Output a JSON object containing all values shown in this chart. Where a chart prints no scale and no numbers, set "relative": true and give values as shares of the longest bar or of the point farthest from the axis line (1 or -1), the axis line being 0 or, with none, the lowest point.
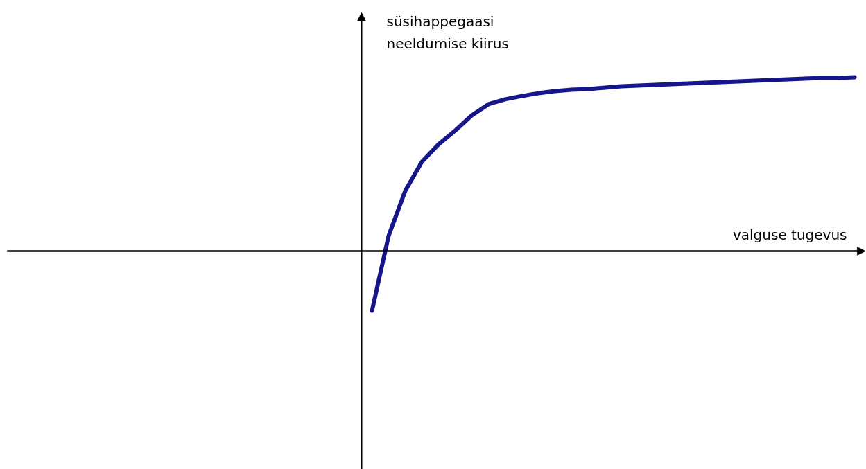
{
  "chart_data": {
    "type": "line",
    "relative": true,
    "xlabel": "valguse tugevus",
    "ylabel": "süsihappegaasi\nneeldumise kiirus",
    "categories": [
      null,
      null,
      null,
      null,
      null,
      null,
      null,
      null,
      null,
      null,
      null,
      null,
      null,
      null,
      null,
      null,
      null,
      null,
      null,
      null,
      null,
      null,
      null,
      null,
      null,
      null,
      null,
      null,
      null,
      null
    ],
    "series": [
      {
        "color": "#16168a",
        "values": [
          -0.343,
          0.088,
          0.347,
          0.514,
          0.614,
          0.693,
          0.781,
          0.845,
          0.873,
          0.892,
          0.908,
          0.92,
          0.928,
          0.932,
          0.94,
          0.948,
          0.952,
          0.956,
          0.96,
          0.964,
          0.968,
          0.972,
          0.976,
          0.98,
          0.984,
          0.988,
          0.992,
          0.996,
          0.996,
          1
        ]
      }
    ],
    "line_style": "solid",
    "marker": "none",
    "grid": false
  }
}
